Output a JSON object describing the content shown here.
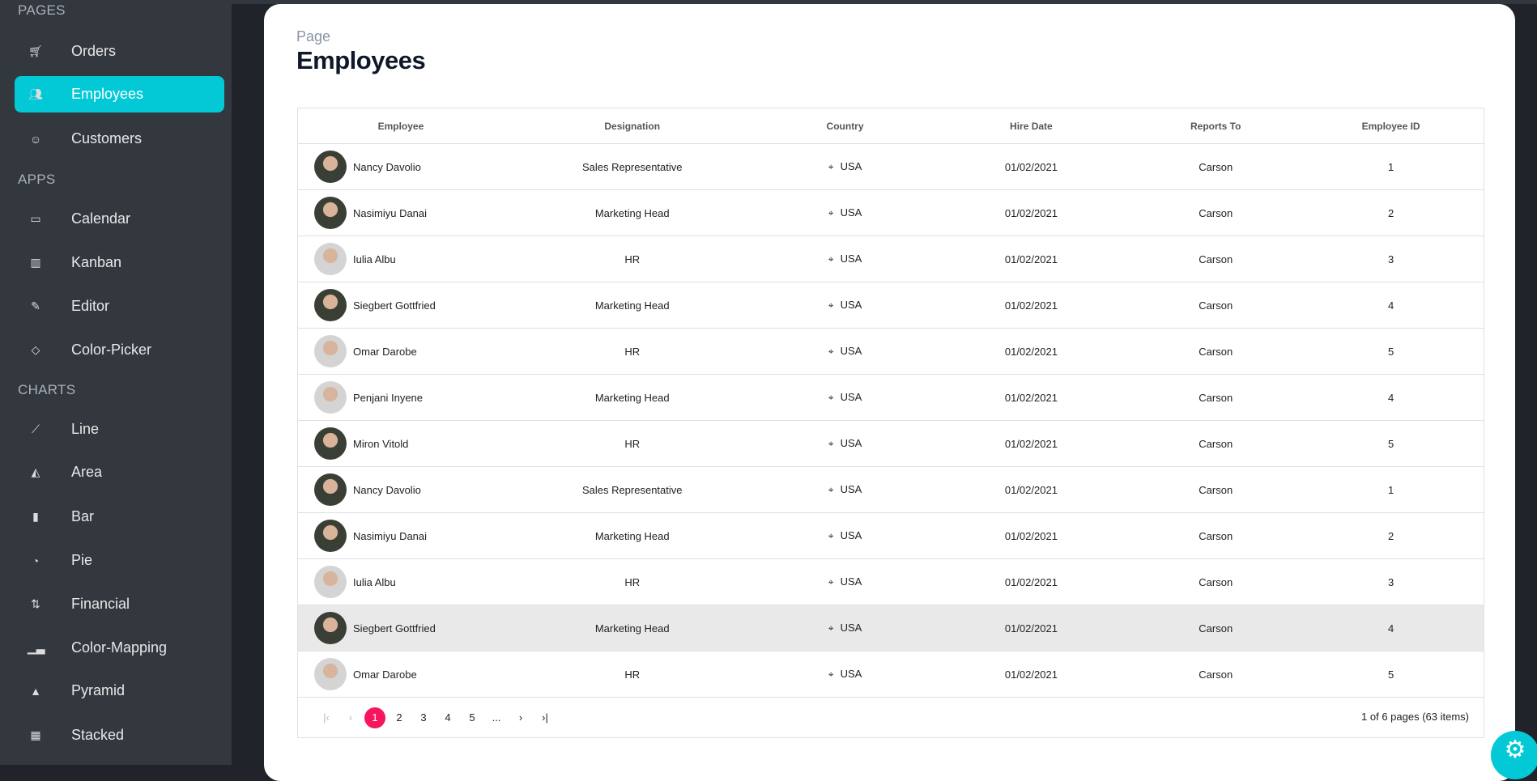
{
  "sidebar": {
    "sections": [
      {
        "title": "PAGES",
        "items": [
          {
            "label": "Orders",
            "icon": "cart-icon"
          },
          {
            "label": "Employees",
            "icon": "employees-icon",
            "active": true
          },
          {
            "label": "Customers",
            "icon": "customers-icon"
          }
        ]
      },
      {
        "title": "APPS",
        "items": [
          {
            "label": "Calendar",
            "icon": "calendar-icon"
          },
          {
            "label": "Kanban",
            "icon": "kanban-icon"
          },
          {
            "label": "Editor",
            "icon": "editor-icon"
          },
          {
            "label": "Color-Picker",
            "icon": "color-picker-icon"
          }
        ]
      },
      {
        "title": "CHARTS",
        "items": [
          {
            "label": "Line",
            "icon": "line-chart-icon"
          },
          {
            "label": "Area",
            "icon": "area-chart-icon"
          },
          {
            "label": "Bar",
            "icon": "bar-chart-icon"
          },
          {
            "label": "Pie",
            "icon": "pie-chart-icon"
          },
          {
            "label": "Financial",
            "icon": "financial-icon"
          },
          {
            "label": "Color-Mapping",
            "icon": "color-mapping-icon"
          },
          {
            "label": "Pyramid",
            "icon": "pyramid-icon"
          },
          {
            "label": "Stacked",
            "icon": "stacked-icon"
          }
        ]
      }
    ],
    "accent": "#03c9d7"
  },
  "header": {
    "crumb": "Page",
    "title": "Employees"
  },
  "grid": {
    "columns": [
      "Employee",
      "Designation",
      "Country",
      "Hire Date",
      "Reports To",
      "Employee ID"
    ],
    "rows": [
      {
        "name": "Nancy Davolio",
        "designation": "Sales Representative",
        "country": "USA",
        "hire": "01/02/2021",
        "reports": "Carson",
        "id": "1"
      },
      {
        "name": "Nasimiyu Danai",
        "designation": "Marketing Head",
        "country": "USA",
        "hire": "01/02/2021",
        "reports": "Carson",
        "id": "2"
      },
      {
        "name": "Iulia Albu",
        "designation": "HR",
        "country": "USA",
        "hire": "01/02/2021",
        "reports": "Carson",
        "id": "3"
      },
      {
        "name": "Siegbert Gottfried",
        "designation": "Marketing Head",
        "country": "USA",
        "hire": "01/02/2021",
        "reports": "Carson",
        "id": "4"
      },
      {
        "name": "Omar Darobe",
        "designation": "HR",
        "country": "USA",
        "hire": "01/02/2021",
        "reports": "Carson",
        "id": "5"
      },
      {
        "name": "Penjani Inyene",
        "designation": "Marketing Head",
        "country": "USA",
        "hire": "01/02/2021",
        "reports": "Carson",
        "id": "4"
      },
      {
        "name": "Miron Vitold",
        "designation": "HR",
        "country": "USA",
        "hire": "01/02/2021",
        "reports": "Carson",
        "id": "5"
      },
      {
        "name": "Nancy Davolio",
        "designation": "Sales Representative",
        "country": "USA",
        "hire": "01/02/2021",
        "reports": "Carson",
        "id": "1"
      },
      {
        "name": "Nasimiyu Danai",
        "designation": "Marketing Head",
        "country": "USA",
        "hire": "01/02/2021",
        "reports": "Carson",
        "id": "2"
      },
      {
        "name": "Iulia Albu",
        "designation": "HR",
        "country": "USA",
        "hire": "01/02/2021",
        "reports": "Carson",
        "id": "3"
      },
      {
        "name": "Siegbert Gottfried",
        "designation": "Marketing Head",
        "country": "USA",
        "hire": "01/02/2021",
        "reports": "Carson",
        "id": "4",
        "selected": true
      },
      {
        "name": "Omar Darobe",
        "designation": "HR",
        "country": "USA",
        "hire": "01/02/2021",
        "reports": "Carson",
        "id": "5"
      }
    ],
    "pager": {
      "pages": [
        "1",
        "2",
        "3",
        "4",
        "5",
        "..."
      ],
      "current": "1",
      "info": "1 of 6 pages (63 items)",
      "current_color": "#f8155e"
    }
  }
}
